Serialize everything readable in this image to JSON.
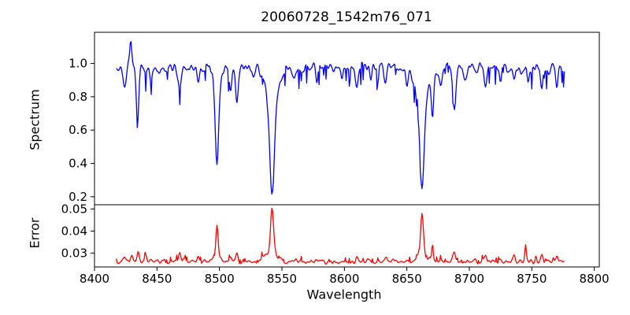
{
  "chart_data": {
    "type": "line",
    "title": "20060728_1542m76_071",
    "xlabel": "Wavelength",
    "grid": false,
    "legend": "none",
    "background": "#ffffff",
    "spine_color": "#000000",
    "xlim": [
      8400,
      8804
    ],
    "xticks": [
      8400,
      8450,
      8500,
      8550,
      8600,
      8650,
      8700,
      8750,
      8800
    ],
    "xtick_labels": [
      "8400",
      "8450",
      "8500",
      "8550",
      "8600",
      "8650",
      "8700",
      "8750",
      "8800"
    ],
    "x_data_range": [
      8417.5,
      8776
    ],
    "n_points": 580,
    "panels": [
      {
        "name": "spectrum",
        "ylabel": "Spectrum",
        "color": "#0000ff",
        "ylim": [
          0.152,
          1.187
        ],
        "yticks": [
          0.2,
          0.4,
          0.6,
          0.8,
          1.0
        ],
        "ytick_labels": [
          "0.2",
          "0.4",
          "0.6",
          "0.8",
          "1.0"
        ],
        "continuum": 0.975,
        "noise_scale": 0.1,
        "dip_prob": 0.09,
        "dip_depth_min": 0.03,
        "dip_depth_max": 0.12,
        "seed": 1371,
        "absorption_features": [
          {
            "center": 8424.0,
            "depth": 0.1,
            "width": 1.2
          },
          {
            "center": 8429.0,
            "depth": -0.17,
            "width": 0.7
          },
          {
            "center": 8434.5,
            "depth": 0.29,
            "width": 1.1
          },
          {
            "center": 8445.0,
            "depth": 0.08,
            "width": 1.0
          },
          {
            "center": 8452.0,
            "depth": 0.06,
            "width": 0.9
          },
          {
            "center": 8468.0,
            "depth": 0.12,
            "width": 1.2
          },
          {
            "center": 8483.0,
            "depth": 0.08,
            "width": 1.0
          },
          {
            "center": 8498.0,
            "depth": 0.56,
            "width": 1.3
          },
          {
            "center": 8498.0,
            "depth": 0.08,
            "width": 3.0
          },
          {
            "center": 8509.0,
            "depth": 0.17,
            "width": 1.0
          },
          {
            "center": 8514.0,
            "depth": 0.2,
            "width": 1.0
          },
          {
            "center": 8527.0,
            "depth": 0.08,
            "width": 1.0
          },
          {
            "center": 8542.1,
            "depth": 0.72,
            "width": 1.8
          },
          {
            "center": 8542.1,
            "depth": 0.22,
            "width": 5.0
          },
          {
            "center": 8560.0,
            "depth": 0.07,
            "width": 1.0
          },
          {
            "center": 8578.0,
            "depth": 0.08,
            "width": 0.9
          },
          {
            "center": 8598.0,
            "depth": 0.09,
            "width": 0.9
          },
          {
            "center": 8610.0,
            "depth": 0.13,
            "width": 0.9
          },
          {
            "center": 8621.0,
            "depth": 0.08,
            "width": 0.9
          },
          {
            "center": 8633.0,
            "depth": 0.1,
            "width": 0.9
          },
          {
            "center": 8650.0,
            "depth": 0.08,
            "width": 0.9
          },
          {
            "center": 8662.1,
            "depth": 0.68,
            "width": 1.7
          },
          {
            "center": 8662.1,
            "depth": 0.2,
            "width": 5.0
          },
          {
            "center": 8670.5,
            "depth": 0.27,
            "width": 0.9
          },
          {
            "center": 8677.0,
            "depth": 0.1,
            "width": 0.9
          },
          {
            "center": 8688.0,
            "depth": 0.24,
            "width": 1.1
          },
          {
            "center": 8697.0,
            "depth": 0.08,
            "width": 0.9
          },
          {
            "center": 8713.0,
            "depth": 0.12,
            "width": 0.9
          },
          {
            "center": 8725.0,
            "depth": 0.09,
            "width": 0.9
          },
          {
            "center": 8736.0,
            "depth": 0.1,
            "width": 0.9
          },
          {
            "center": 8747.0,
            "depth": 0.08,
            "width": 0.9
          },
          {
            "center": 8758.0,
            "depth": 0.13,
            "width": 0.9
          },
          {
            "center": 8770.0,
            "depth": 0.1,
            "width": 0.9
          }
        ]
      },
      {
        "name": "error",
        "ylabel": "Error",
        "color": "#ff0000",
        "ylim": [
          0.0237,
          0.0519
        ],
        "yticks": [
          0.03,
          0.04,
          0.05
        ],
        "ytick_labels": [
          "0.03",
          "0.04",
          "0.05"
        ],
        "baseline": 0.0262,
        "noise_scale": 0.0035,
        "spike_prob": 0.07,
        "spike_height_min": 0.0008,
        "spike_height_max": 0.0025,
        "seed": 9042,
        "peaks": [
          {
            "center": 8424.0,
            "height": 0.002,
            "width": 1.0
          },
          {
            "center": 8430.0,
            "height": 0.0035,
            "width": 0.8
          },
          {
            "center": 8435.0,
            "height": 0.0045,
            "width": 0.8
          },
          {
            "center": 8441.0,
            "height": 0.004,
            "width": 0.8
          },
          {
            "center": 8450.0,
            "height": 0.0015,
            "width": 1.0
          },
          {
            "center": 8468.0,
            "height": 0.0035,
            "width": 1.0
          },
          {
            "center": 8483.0,
            "height": 0.002,
            "width": 0.9
          },
          {
            "center": 8498.0,
            "height": 0.015,
            "width": 0.9
          },
          {
            "center": 8498.0,
            "height": 0.002,
            "width": 3.0
          },
          {
            "center": 8509.0,
            "height": 0.003,
            "width": 0.9
          },
          {
            "center": 8514.0,
            "height": 0.0028,
            "width": 0.9
          },
          {
            "center": 8535.0,
            "height": 0.002,
            "width": 1.5
          },
          {
            "center": 8542.1,
            "height": 0.021,
            "width": 1.2
          },
          {
            "center": 8542.1,
            "height": 0.0035,
            "width": 4.0
          },
          {
            "center": 8560.0,
            "height": 0.0015,
            "width": 1.0
          },
          {
            "center": 8610.0,
            "height": 0.002,
            "width": 0.9
          },
          {
            "center": 8633.0,
            "height": 0.0015,
            "width": 0.9
          },
          {
            "center": 8662.1,
            "height": 0.018,
            "width": 1.1
          },
          {
            "center": 8662.1,
            "height": 0.003,
            "width": 3.5
          },
          {
            "center": 8670.5,
            "height": 0.0085,
            "width": 0.6
          },
          {
            "center": 8677.0,
            "height": 0.002,
            "width": 0.8
          },
          {
            "center": 8688.0,
            "height": 0.0045,
            "width": 0.9
          },
          {
            "center": 8713.0,
            "height": 0.002,
            "width": 0.8
          },
          {
            "center": 8736.0,
            "height": 0.002,
            "width": 0.8
          },
          {
            "center": 8745.0,
            "height": 0.0075,
            "width": 0.6
          },
          {
            "center": 8758.0,
            "height": 0.0035,
            "width": 0.8
          },
          {
            "center": 8770.0,
            "height": 0.003,
            "width": 0.8
          }
        ]
      }
    ]
  }
}
